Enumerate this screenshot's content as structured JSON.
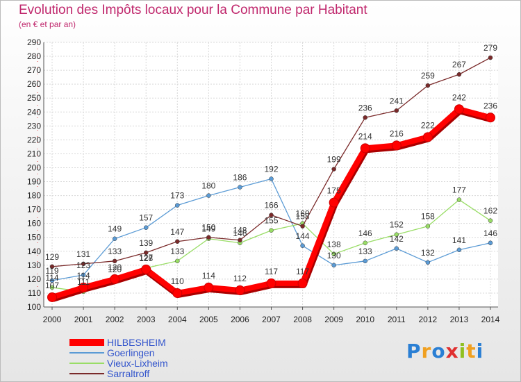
{
  "chart_data": {
    "type": "line",
    "title": "Evolution des Impôts locaux pour la Commune par Habitant",
    "subtitle": "(en € et par an)",
    "x": [
      2000,
      2001,
      2002,
      2003,
      2004,
      2005,
      2006,
      2007,
      2008,
      2009,
      2010,
      2011,
      2012,
      2013,
      2014
    ],
    "x_labels": [
      "2000",
      "2001",
      "2002",
      "2003",
      "2004",
      "2005",
      "2006",
      "2007",
      "2008",
      "2009",
      "2010",
      "2011",
      "2012",
      "2013",
      "2014"
    ],
    "ylim": [
      100,
      290
    ],
    "y_ticks": [
      "100",
      "110",
      "120",
      "130",
      "140",
      "150",
      "160",
      "170",
      "180",
      "190",
      "200",
      "210",
      "220",
      "230",
      "240",
      "250",
      "260",
      "270",
      "280",
      "290"
    ],
    "grid": true,
    "legend_position": "bottom-left",
    "series": [
      {
        "name": "HILBESHEIM",
        "color": "#ff0000",
        "values": [
          107,
          114,
          120,
          127,
          110,
          114,
          112,
          117,
          117,
          175,
          214,
          216,
          222,
          242,
          236
        ]
      },
      {
        "name": "Goerlingen",
        "color": "#5b9bd5",
        "values": [
          119,
          123,
          149,
          157,
          173,
          180,
          186,
          192,
          144,
          130,
          133,
          142,
          132,
          141,
          146
        ]
      },
      {
        "name": "Vieux-Lixheim",
        "color": "#99dd66",
        "values": [
          114,
          111,
          120,
          128,
          133,
          149,
          146,
          155,
          160,
          138,
          146,
          152,
          158,
          177,
          162
        ]
      },
      {
        "name": "Sarraltroff",
        "color": "#7a2a2a",
        "values": [
          129,
          131,
          133,
          139,
          147,
          150,
          148,
          166,
          158,
          199,
          236,
          241,
          259,
          267,
          279
        ]
      }
    ]
  },
  "logo": {
    "text": "Proxiti"
  }
}
